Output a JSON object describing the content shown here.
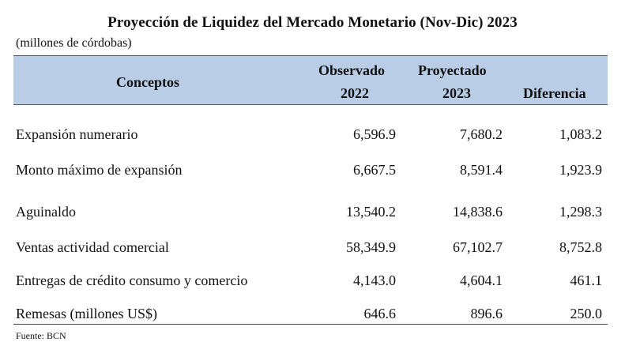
{
  "title": "Proyección de Liquidez del Mercado Monetario (Nov-Dic) 2023",
  "subtitle": "(millones de córdobas)",
  "header": {
    "conceptos": "Conceptos",
    "observado": "Observado",
    "observado_year": "2022",
    "proyectado": "Proyectado",
    "proyectado_year": "2023",
    "diferencia": "Diferencia"
  },
  "rows": [
    {
      "label": "Expansión numerario",
      "observado": "6,596.9",
      "proyectado": "7,680.2",
      "diferencia": "1,083.2"
    },
    {
      "label": "Monto máximo de expansión",
      "observado": "6,667.5",
      "proyectado": "8,591.4",
      "diferencia": "1,923.9"
    },
    {
      "label": "Aguinaldo",
      "observado": "13,540.2",
      "proyectado": "14,838.6",
      "diferencia": "1,298.3"
    },
    {
      "label": "Ventas actividad comercial",
      "observado": "58,349.9",
      "proyectado": "67,102.7",
      "diferencia": "8,752.8"
    },
    {
      "label": "Entregas de crédito consumo y comercio",
      "observado": "4,143.0",
      "proyectado": "4,604.1",
      "diferencia": "461.1"
    },
    {
      "label": "Remesas (millones US$)",
      "observado": "646.6",
      "proyectado": "896.6",
      "diferencia": "250.0"
    }
  ],
  "source": "Fuente: BCN",
  "colors": {
    "header_background": "#b9cde6",
    "text": "#111111"
  }
}
